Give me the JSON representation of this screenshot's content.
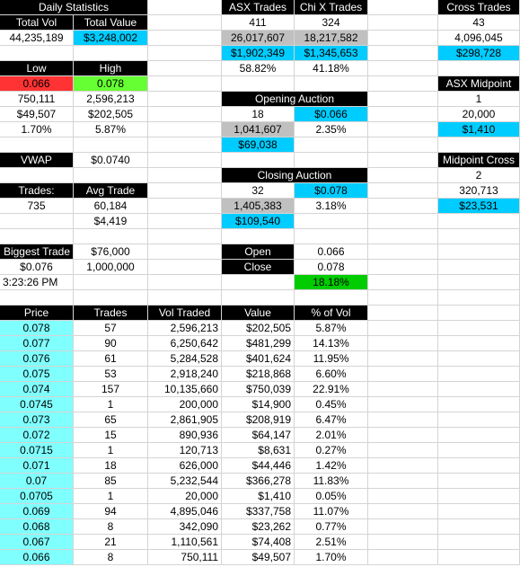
{
  "stats": {
    "title": "Daily Statistics",
    "totals": {
      "headers": [
        "Total Vol",
        "Total Value"
      ],
      "values": [
        "44,235,189",
        "$3,248,002"
      ]
    },
    "low_high": {
      "headers": [
        "Low",
        "High"
      ],
      "rows": [
        [
          "0.066",
          "0.078"
        ],
        [
          "750,111",
          "2,596,213"
        ],
        [
          "$49,507",
          "$202,505"
        ],
        [
          "1.70%",
          "5.87%"
        ]
      ]
    },
    "vwap": {
      "label": "VWAP",
      "value": "$0.0740"
    },
    "trades": {
      "label": "Trades:",
      "value": "735"
    },
    "avg_trade": {
      "label": "Avg Trade",
      "volume": "60,184",
      "value": "$4,419"
    },
    "biggest_trade": {
      "label": "Biggest Trade",
      "value": "$76,000",
      "price": "$0.076",
      "volume": "1,000,000",
      "time": "3:23:26 PM"
    }
  },
  "venues": {
    "headers": [
      "ASX Trades",
      "Chi X Trades"
    ],
    "rows": [
      [
        "411",
        "324"
      ],
      [
        "26,017,607",
        "18,217,582"
      ],
      [
        "$1,902,349",
        "$1,345,653"
      ],
      [
        "58.82%",
        "41.18%"
      ]
    ]
  },
  "opening_auction": {
    "title": "Opening Auction",
    "trades": "18",
    "price": "$0.066",
    "volume": "1,041,607",
    "pct": "2.35%",
    "value": "$69,038"
  },
  "closing_auction": {
    "title": "Closing Auction",
    "trades": "32",
    "price": "$0.078",
    "volume": "1,405,383",
    "pct": "3.18%",
    "value": "$109,540"
  },
  "open_close": {
    "open_label": "Open",
    "open": "0.066",
    "close_label": "Close",
    "close": "0.078",
    "change": "18.18%"
  },
  "cross_trades": {
    "title": "Cross Trades",
    "trades": "43",
    "volume": "4,096,045",
    "value": "$298,728"
  },
  "asx_midpoint": {
    "title": "ASX Midpoint",
    "trades": "1",
    "volume": "20,000",
    "value": "$1,410"
  },
  "midpoint_cross": {
    "title": "Midpoint Cross",
    "trades": "2",
    "volume": "320,713",
    "value": "$23,531"
  },
  "price_table": {
    "headers": [
      "Price",
      "Trades",
      "Vol Traded",
      "Value",
      "% of Vol"
    ],
    "rows": [
      [
        "0.078",
        "57",
        "2,596,213",
        "$202,505",
        "5.87%"
      ],
      [
        "0.077",
        "90",
        "6,250,642",
        "$481,299",
        "14.13%"
      ],
      [
        "0.076",
        "61",
        "5,284,528",
        "$401,624",
        "11.95%"
      ],
      [
        "0.075",
        "53",
        "2,918,240",
        "$218,868",
        "6.60%"
      ],
      [
        "0.074",
        "157",
        "10,135,660",
        "$750,039",
        "22.91%"
      ],
      [
        "0.0745",
        "1",
        "200,000",
        "$14,900",
        "0.45%"
      ],
      [
        "0.073",
        "65",
        "2,861,905",
        "$208,919",
        "6.47%"
      ],
      [
        "0.072",
        "15",
        "890,936",
        "$64,147",
        "2.01%"
      ],
      [
        "0.0715",
        "1",
        "120,713",
        "$8,631",
        "0.27%"
      ],
      [
        "0.071",
        "18",
        "626,000",
        "$44,446",
        "1.42%"
      ],
      [
        "0.07",
        "85",
        "5,232,544",
        "$366,278",
        "11.83%"
      ],
      [
        "0.0705",
        "1",
        "20,000",
        "$1,410",
        "0.05%"
      ],
      [
        "0.069",
        "94",
        "4,895,046",
        "$337,758",
        "11.07%"
      ],
      [
        "0.068",
        "8",
        "342,090",
        "$23,262",
        "0.77%"
      ],
      [
        "0.067",
        "21",
        "1,110,561",
        "$74,408",
        "2.51%"
      ],
      [
        "0.066",
        "8",
        "750,111",
        "$49,507",
        "1.70%"
      ]
    ]
  }
}
